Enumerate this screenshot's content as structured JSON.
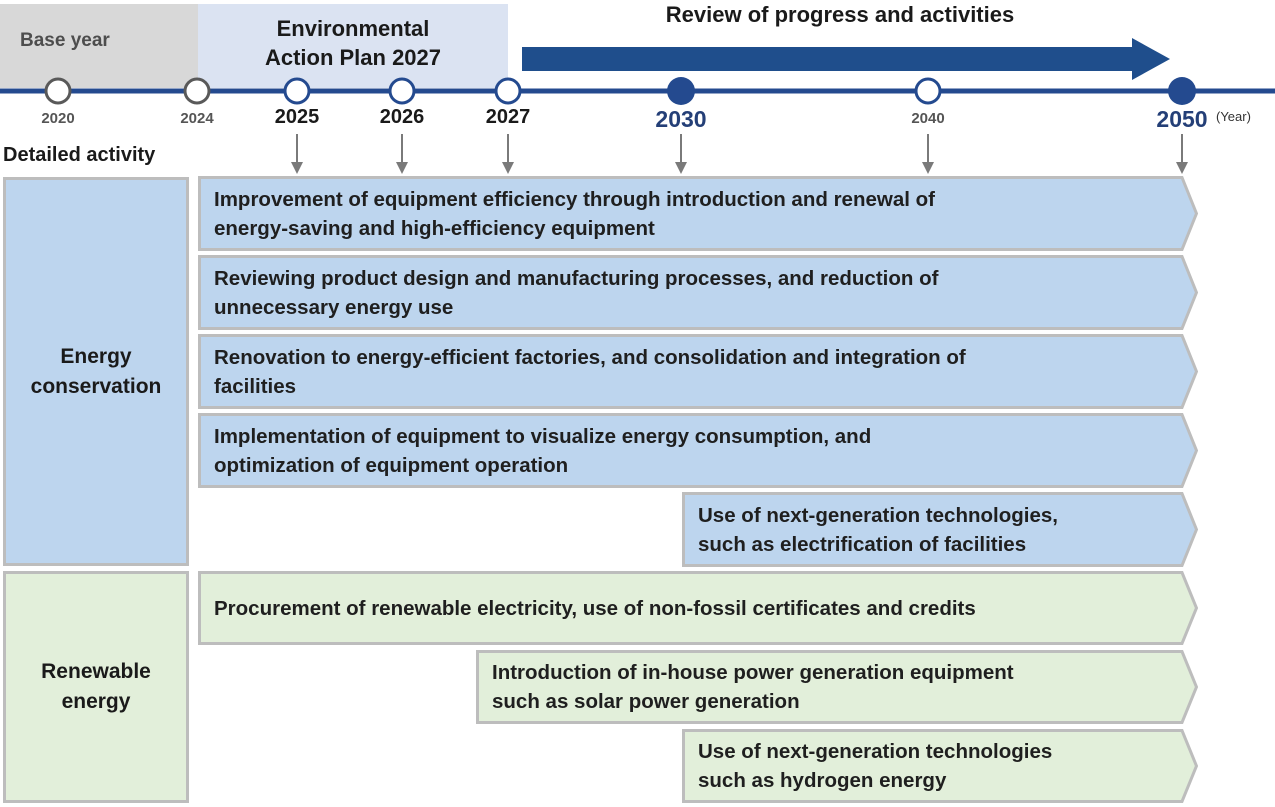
{
  "header": {
    "base_year_label": "Base year",
    "plan_title": "Environmental\nAction Plan 2027",
    "review_title": "Review of progress and activities",
    "year_unit": "(Year)",
    "detailed_activity_label": "Detailed activity"
  },
  "timeline": {
    "years": [
      {
        "label": "2020",
        "marker": "hollow-gray"
      },
      {
        "label": "2024",
        "marker": "hollow-gray"
      },
      {
        "label": "2025",
        "marker": "hollow-blue"
      },
      {
        "label": "2026",
        "marker": "hollow-blue"
      },
      {
        "label": "2027",
        "marker": "hollow-blue"
      },
      {
        "label": "2030",
        "marker": "filled-blue"
      },
      {
        "label": "2040",
        "marker": "hollow-blue"
      },
      {
        "label": "2050",
        "marker": "filled-blue"
      }
    ]
  },
  "categories": [
    {
      "label": "Energy\nconservation"
    },
    {
      "label": "Renewable\nenergy"
    }
  ],
  "activities": [
    {
      "text": "Improvement of equipment efficiency through introduction and renewal of\nenergy-saving and high-efficiency equipment",
      "category": "Energy conservation",
      "start": "2025",
      "end": "2050"
    },
    {
      "text": "Reviewing product design and manufacturing processes, and reduction of\nunnecessary energy use",
      "category": "Energy conservation",
      "start": "2025",
      "end": "2050"
    },
    {
      "text": "Renovation to energy-efficient factories, and consolidation and integration of\nfacilities",
      "category": "Energy conservation",
      "start": "2025",
      "end": "2050"
    },
    {
      "text": "Implementation of equipment to visualize energy consumption, and\noptimization of equipment operation",
      "category": "Energy conservation",
      "start": "2025",
      "end": "2050"
    },
    {
      "text": "Use of next-generation technologies,\nsuch as electrification of facilities",
      "category": "Energy conservation",
      "start": "2030",
      "end": "2050"
    },
    {
      "text": "Procurement of renewable electricity, use of non-fossil certificates and credits",
      "category": "Renewable energy",
      "start": "2025",
      "end": "2050"
    },
    {
      "text": "Introduction of in-house power generation equipment\nsuch as solar power generation",
      "category": "Renewable energy",
      "start": "2027",
      "end": "2050"
    },
    {
      "text": "Use of next-generation technologies\nsuch as hydrogen energy",
      "category": "Renewable energy",
      "start": "2030",
      "end": "2050"
    }
  ],
  "colors": {
    "timeline_blue": "#244a8f",
    "arrow_blue": "#1f4e8c",
    "energy_fill": "#bdd5ee",
    "renewable_fill": "#e2efda",
    "border_gray": "#bdbdbd",
    "marker_gray": "#595959"
  }
}
